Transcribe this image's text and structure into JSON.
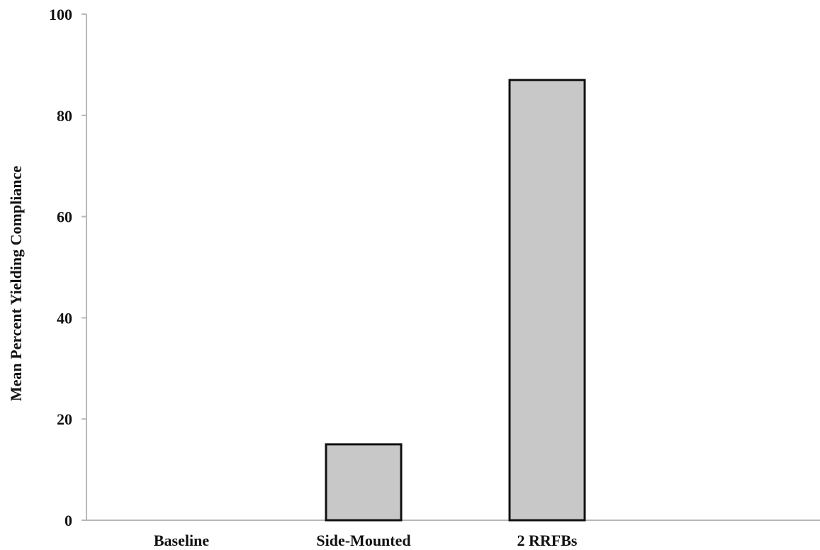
{
  "chart_data": {
    "type": "bar",
    "title": "",
    "xlabel": "",
    "ylabel": "Mean Percent Yielding Compliance",
    "categories": [
      "Baseline",
      "Side-Mounted",
      "2 RRFBs"
    ],
    "values": [
      0,
      15,
      87
    ],
    "ylim": [
      0,
      100
    ],
    "yticks": [
      0,
      20,
      40,
      60,
      80,
      100
    ],
    "grid": false,
    "legend": "none",
    "colors": {
      "bar_fill": "#c8c8c8",
      "bar_stroke": "#111111",
      "axis": "#b8b8b8",
      "text": "#111111"
    }
  }
}
